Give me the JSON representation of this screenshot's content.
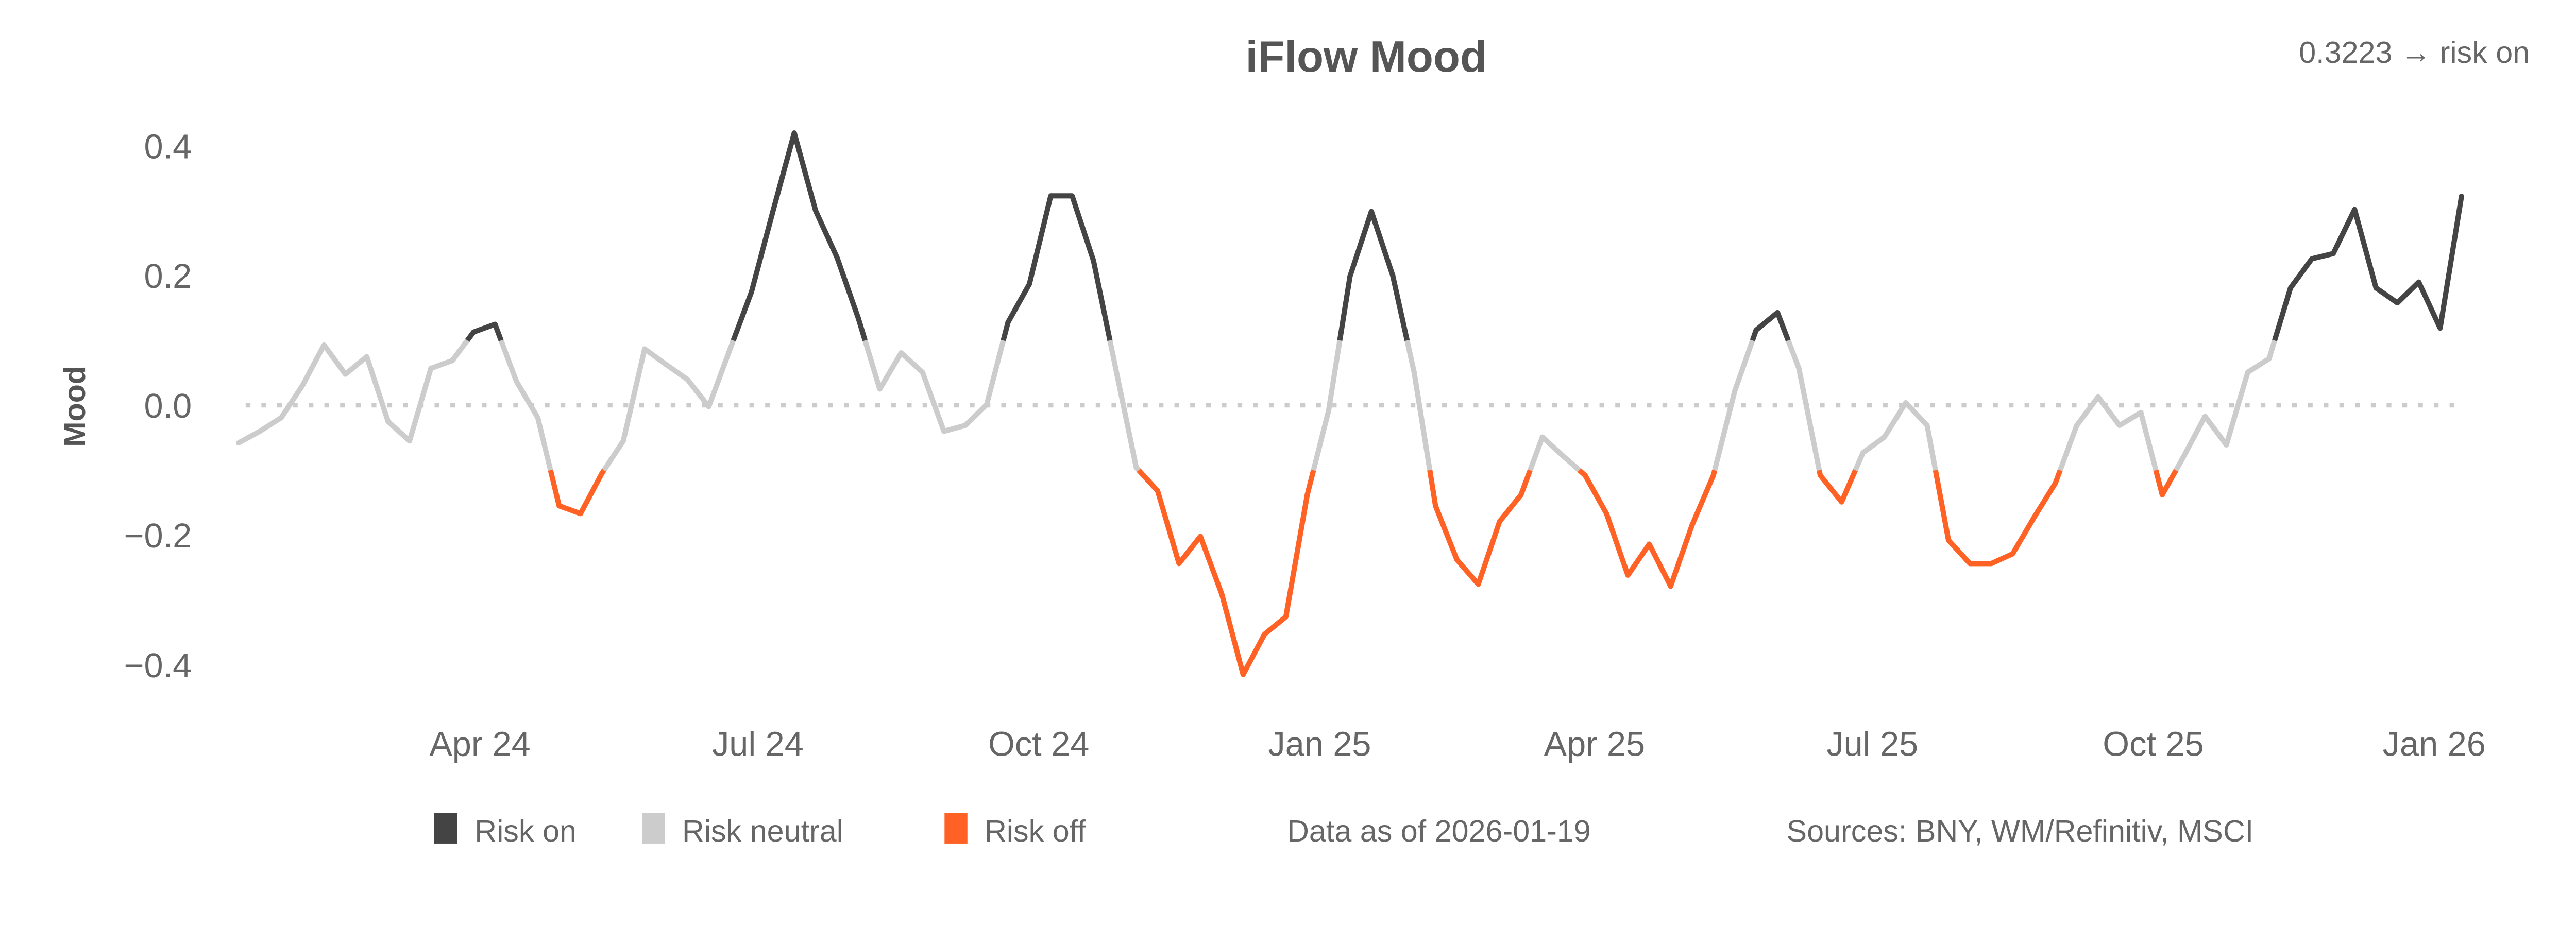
{
  "header": {
    "title": "iFlow Mood",
    "latest_reading": "0.3223 → risk on"
  },
  "footer": {
    "legend": [
      {
        "label": "Risk on",
        "color": "#444444"
      },
      {
        "label": "Risk neutral",
        "color": "#cccccc"
      },
      {
        "label": "Risk off",
        "color": "#ff6224"
      }
    ],
    "data_as_of": "Data as of 2026-01-19",
    "sources": "Sources:  BNY, WM/Refinitiv, MSCI"
  },
  "chart_data": {
    "type": "line",
    "title": "iFlow Mood",
    "xlabel": "",
    "ylabel": "Mood",
    "ylim": [
      -0.45,
      0.45
    ],
    "xlim": [
      "2024-01-22",
      "2026-01-19"
    ],
    "grid": false,
    "reference_line": {
      "y": 0.0,
      "style": "dotted",
      "color": "#cccccc"
    },
    "regime_thresholds": {
      "risk_on_above": 0.1,
      "risk_off_below": -0.1
    },
    "colors": {
      "risk_on": "#444444",
      "risk_neutral": "#cccccc",
      "risk_off": "#ff6224"
    },
    "y_ticks": [
      {
        "value": 0.4,
        "label": "0.4"
      },
      {
        "value": 0.2,
        "label": "0.2"
      },
      {
        "value": 0.0,
        "label": "0.0"
      },
      {
        "value": -0.2,
        "label": "−0.2"
      },
      {
        "value": -0.4,
        "label": "−0.4"
      }
    ],
    "x_ticks": [
      {
        "date": "2024-04-01",
        "label": "Apr 24"
      },
      {
        "date": "2024-07-01",
        "label": "Jul 24"
      },
      {
        "date": "2024-10-01",
        "label": "Oct 24"
      },
      {
        "date": "2025-01-01",
        "label": "Jan 25"
      },
      {
        "date": "2025-04-01",
        "label": "Apr 25"
      },
      {
        "date": "2025-07-01",
        "label": "Jul 25"
      },
      {
        "date": "2025-10-01",
        "label": "Oct 25"
      },
      {
        "date": "2026-01-01",
        "label": "Jan 26"
      }
    ],
    "legend_placement": "bottom",
    "x": [
      "2024-01-22",
      "2024-01-29",
      "2024-02-05",
      "2024-02-12",
      "2024-02-19",
      "2024-02-26",
      "2024-03-04",
      "2024-03-11",
      "2024-03-18",
      "2024-03-25",
      "2024-04-01",
      "2024-04-08",
      "2024-04-15",
      "2024-04-22",
      "2024-04-29",
      "2024-05-06",
      "2024-05-13",
      "2024-05-20",
      "2024-05-27",
      "2024-06-03",
      "2024-06-10",
      "2024-06-17",
      "2024-06-24",
      "2024-07-01",
      "2024-07-08",
      "2024-07-15",
      "2024-07-22",
      "2024-07-29",
      "2024-08-05",
      "2024-08-12",
      "2024-08-19",
      "2024-08-26",
      "2024-09-02",
      "2024-09-09",
      "2024-09-16",
      "2024-09-23",
      "2024-09-30",
      "2024-10-07",
      "2024-10-14",
      "2024-10-21",
      "2024-10-28",
      "2024-11-04",
      "2024-11-11",
      "2024-11-18",
      "2024-11-25",
      "2024-12-02",
      "2024-12-09",
      "2024-12-16",
      "2024-12-23",
      "2024-12-30",
      "2025-01-06",
      "2025-01-13",
      "2025-01-20",
      "2025-01-27",
      "2025-02-03",
      "2025-02-10",
      "2025-02-17",
      "2025-02-24",
      "2025-03-03",
      "2025-03-10",
      "2025-03-17",
      "2025-03-24",
      "2025-03-31",
      "2025-04-07",
      "2025-04-14",
      "2025-04-21",
      "2025-04-28",
      "2025-05-05",
      "2025-05-12",
      "2025-05-19",
      "2025-05-26",
      "2025-06-02",
      "2025-06-09",
      "2025-06-16",
      "2025-06-23",
      "2025-06-30",
      "2025-07-07",
      "2025-07-14",
      "2025-07-21",
      "2025-07-28",
      "2025-08-04",
      "2025-08-11",
      "2025-08-18",
      "2025-08-25",
      "2025-09-01",
      "2025-09-08",
      "2025-09-15",
      "2025-09-22",
      "2025-09-29",
      "2025-10-06",
      "2025-10-13",
      "2025-10-20",
      "2025-10-27",
      "2025-11-03",
      "2025-11-10",
      "2025-11-17",
      "2025-11-24",
      "2025-12-01",
      "2025-12-08",
      "2025-12-15",
      "2025-12-22",
      "2025-12-29",
      "2026-01-05",
      "2026-01-12",
      "2026-01-19"
    ],
    "series": [
      {
        "values": [
          -0.058,
          -0.04,
          -0.019,
          0.031,
          0.093,
          0.048,
          0.075,
          -0.025,
          -0.055,
          0.057,
          0.069,
          0.113,
          0.125,
          0.037,
          -0.019,
          -0.155,
          -0.167,
          -0.105,
          -0.055,
          0.087,
          0.063,
          0.04,
          -0.002,
          0.087,
          0.175,
          0.299,
          0.42,
          0.3,
          0.228,
          0.134,
          0.025,
          0.081,
          0.051,
          -0.04,
          -0.031,
          0.001,
          0.128,
          0.187,
          0.323,
          0.323,
          0.223,
          0.063,
          -0.096,
          -0.132,
          -0.244,
          -0.202,
          -0.291,
          -0.415,
          -0.353,
          -0.326,
          -0.138,
          -0.008,
          0.199,
          0.299,
          0.2,
          0.051,
          -0.155,
          -0.238,
          -0.276,
          -0.179,
          -0.138,
          -0.049,
          -0.079,
          -0.108,
          -0.167,
          -0.262,
          -0.214,
          -0.279,
          -0.185,
          -0.108,
          0.022,
          0.116,
          0.143,
          0.057,
          -0.108,
          -0.149,
          -0.073,
          -0.049,
          0.004,
          -0.031,
          -0.208,
          -0.244,
          -0.244,
          -0.229,
          -0.173,
          -0.12,
          -0.031,
          0.013,
          -0.031,
          -0.011,
          -0.138,
          -0.079,
          -0.017,
          -0.061,
          0.051,
          0.072,
          0.181,
          0.226,
          0.234,
          0.302,
          0.181,
          0.158,
          0.19,
          0.119,
          0.3223
        ]
      }
    ]
  }
}
